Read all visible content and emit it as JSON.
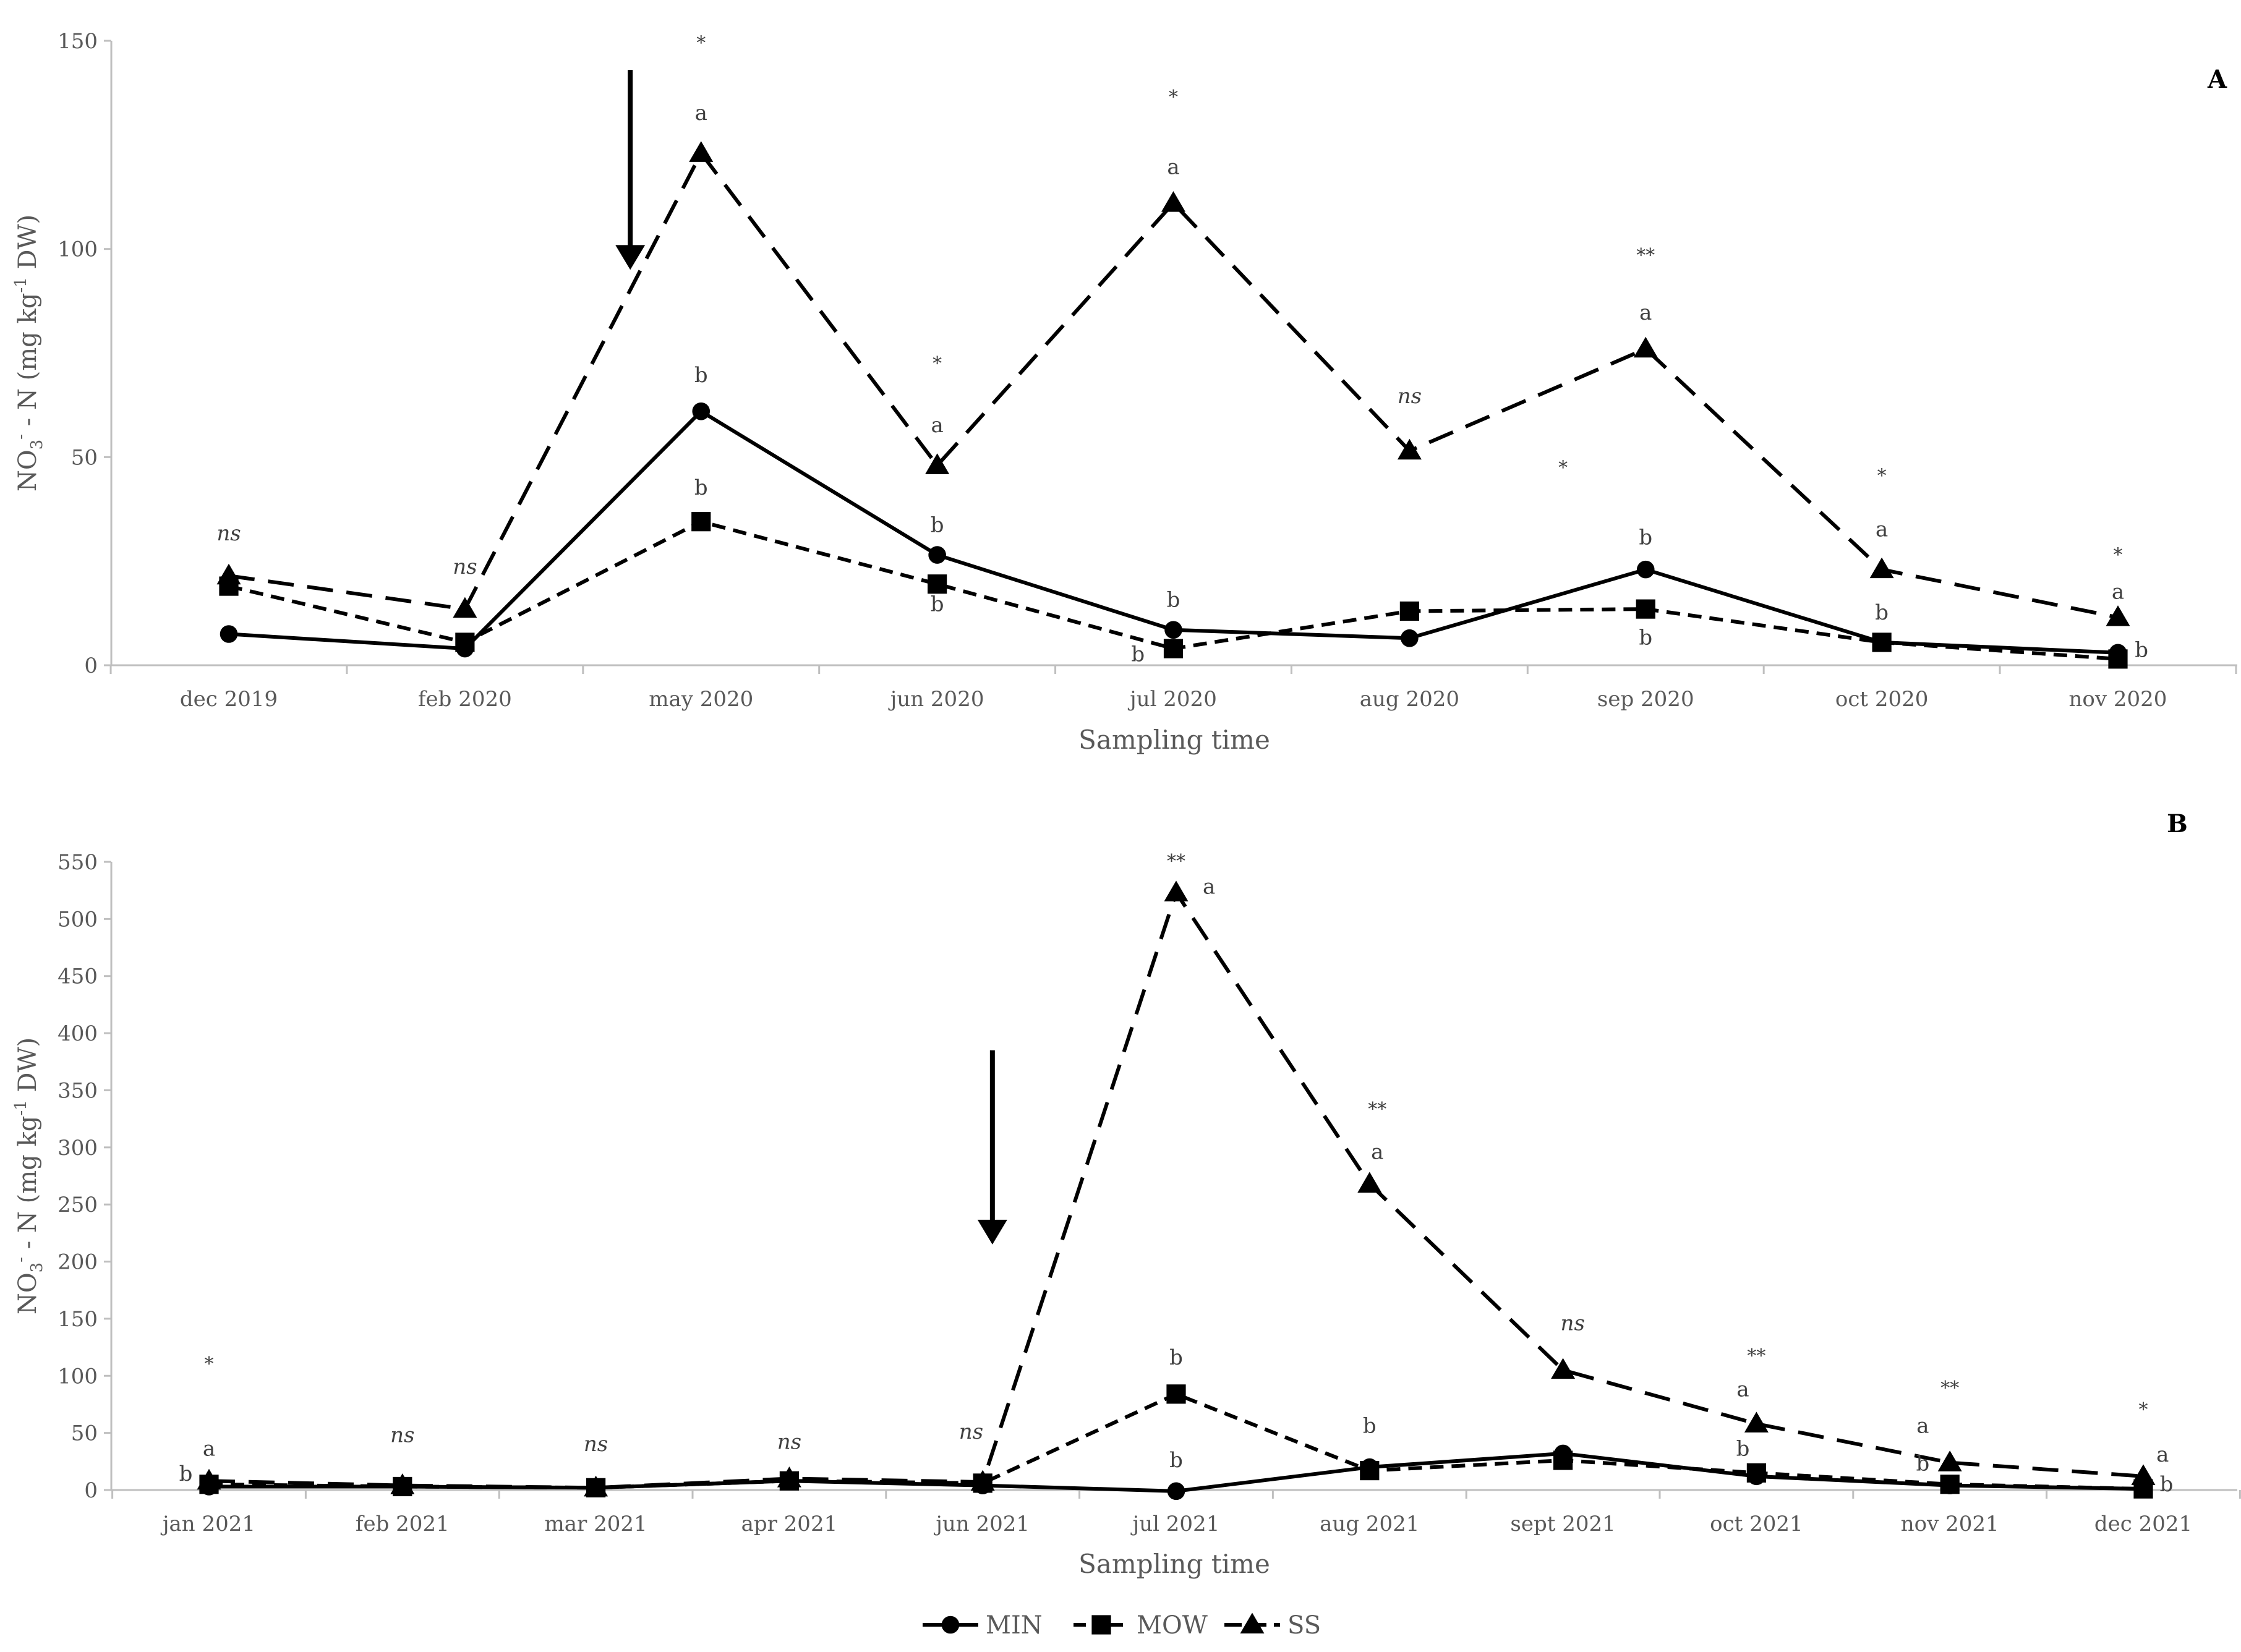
{
  "chart_data": [
    {
      "type": "line",
      "panel_label": "A",
      "xlabel": "Sampling time",
      "ylabel": "NO₃⁻ - N (mg kg⁻¹ DW)",
      "ylabel_parts": {
        "pre": "NO",
        "sub": "3",
        "sup1": "-",
        "mid": " - N (mg kg",
        "sup2": "-1",
        "post": " DW)"
      },
      "ylim": [
        0,
        150
      ],
      "yticks": [
        0,
        50,
        100,
        150
      ],
      "categories": [
        "dec 2019",
        "feb 2020",
        "may 2020",
        "jun 2020",
        "jul 2020",
        "aug 2020",
        "sep 2020",
        "oct 2020",
        "nov 2020"
      ],
      "series": [
        {
          "name": "MIN",
          "marker": "circle",
          "dash": "solid",
          "values": [
            7.5,
            4,
            61,
            26.5,
            8.5,
            6.5,
            23,
            5.5,
            3
          ]
        },
        {
          "name": "MOW",
          "marker": "square",
          "dash": "short",
          "values": [
            19,
            5.5,
            34.5,
            19.5,
            4,
            13,
            13.5,
            5.5,
            1.5
          ]
        },
        {
          "name": "SS",
          "marker": "triangle",
          "dash": "long",
          "values": [
            21.5,
            13.5,
            123,
            48,
            111,
            51.5,
            76,
            23,
            11.5
          ]
        }
      ],
      "annotations": [
        {
          "cat": 0,
          "value": 30,
          "text": "ns",
          "italic": true
        },
        {
          "cat": 1,
          "value": 22,
          "text": "ns",
          "italic": true
        },
        {
          "cat": 2,
          "value": 148,
          "text": "*"
        },
        {
          "cat": 2,
          "value": 131,
          "text": "a"
        },
        {
          "cat": 2,
          "value": 68,
          "text": "b"
        },
        {
          "cat": 2,
          "value": 41,
          "text": "b"
        },
        {
          "cat": 3,
          "value": 71,
          "text": "*"
        },
        {
          "cat": 3,
          "value": 56,
          "text": "a"
        },
        {
          "cat": 3,
          "value": 32,
          "text": "b"
        },
        {
          "cat": 3,
          "value": 13,
          "text": "b"
        },
        {
          "cat": 4,
          "value": 135,
          "text": "*"
        },
        {
          "cat": 4,
          "value": 118,
          "text": "a"
        },
        {
          "cat": 4,
          "value": 14,
          "text": "b"
        },
        {
          "cat": 3.85,
          "value": 1,
          "text": "b"
        },
        {
          "cat": 5,
          "value": 63,
          "text": "ns",
          "italic": true
        },
        {
          "cat": 6,
          "value": 97,
          "text": "**"
        },
        {
          "cat": 6,
          "value": 83,
          "text": "a"
        },
        {
          "cat": 5.65,
          "value": 46,
          "text": "*"
        },
        {
          "cat": 6,
          "value": 29,
          "text": "b"
        },
        {
          "cat": 6,
          "value": 5,
          "text": "b"
        },
        {
          "cat": 7,
          "value": 44,
          "text": "*"
        },
        {
          "cat": 7,
          "value": 31,
          "text": "a"
        },
        {
          "cat": 7,
          "value": 11,
          "text": "b"
        },
        {
          "cat": 8,
          "value": 25,
          "text": "*"
        },
        {
          "cat": 8,
          "value": 16,
          "text": "a"
        },
        {
          "cat": 8.1,
          "value": 2,
          "text": "b"
        }
      ],
      "arrow": {
        "cat": 1.7,
        "from": 143,
        "to": 95
      }
    },
    {
      "type": "line",
      "panel_label": "B",
      "xlabel": "Sampling time",
      "ylabel": "NO₃⁻ - N (mg kg⁻¹ DW)",
      "ylabel_parts": {
        "pre": "NO",
        "sub": "3",
        "sup1": "-",
        "mid": " - N (mg kg",
        "sup2": "-1",
        "post": " DW)"
      },
      "ylim": [
        0,
        550
      ],
      "yticks": [
        0,
        50,
        100,
        150,
        200,
        250,
        300,
        350,
        400,
        450,
        500,
        550
      ],
      "categories": [
        "jan 2021",
        "feb 2021",
        "mar 2021",
        "apr 2021",
        "jun 2021",
        "jul 2021",
        "aug 2021",
        "sept 2021",
        "oct 2021",
        "nov 2021",
        "dec 2021"
      ],
      "series": [
        {
          "name": "MIN",
          "marker": "circle",
          "dash": "solid",
          "values": [
            3,
            3,
            2,
            8,
            4,
            -1,
            20,
            32,
            12,
            4,
            1
          ]
        },
        {
          "name": "MOW",
          "marker": "square",
          "dash": "short",
          "values": [
            5,
            3,
            2,
            8,
            6,
            84,
            17,
            26,
            15,
            5,
            1
          ]
        },
        {
          "name": "SS",
          "marker": "triangle",
          "dash": "long",
          "values": [
            8,
            4,
            2,
            10,
            7,
            523,
            268,
            105,
            58,
            24,
            12
          ]
        }
      ],
      "annotations": [
        {
          "cat": 0,
          "value": 105,
          "text": "*"
        },
        {
          "cat": 0,
          "value": 30,
          "text": "a"
        },
        {
          "cat": -0.12,
          "value": 8,
          "text": "b"
        },
        {
          "cat": 1,
          "value": 42,
          "text": "ns",
          "italic": true
        },
        {
          "cat": 2,
          "value": 34,
          "text": "ns",
          "italic": true
        },
        {
          "cat": 3,
          "value": 36,
          "text": "ns",
          "italic": true
        },
        {
          "cat": 3.94,
          "value": 45,
          "text": "ns",
          "italic": true
        },
        {
          "cat": 5,
          "value": 545,
          "text": "**"
        },
        {
          "cat": 5.17,
          "value": 522,
          "text": "a"
        },
        {
          "cat": 5,
          "value": 110,
          "text": "b"
        },
        {
          "cat": 5,
          "value": 20,
          "text": "b"
        },
        {
          "cat": 6.04,
          "value": 328,
          "text": "**"
        },
        {
          "cat": 6.04,
          "value": 290,
          "text": "a"
        },
        {
          "cat": 6,
          "value": 50,
          "text": "b"
        },
        {
          "cat": 7.05,
          "value": 140,
          "text": "ns",
          "italic": true
        },
        {
          "cat": 8,
          "value": 112,
          "text": "**"
        },
        {
          "cat": 7.93,
          "value": 82,
          "text": "a"
        },
        {
          "cat": 7.93,
          "value": 30,
          "text": "b"
        },
        {
          "cat": 9,
          "value": 84,
          "text": "**"
        },
        {
          "cat": 8.86,
          "value": 50,
          "text": "a"
        },
        {
          "cat": 8.86,
          "value": 17,
          "text": "b"
        },
        {
          "cat": 10,
          "value": 65,
          "text": "*"
        },
        {
          "cat": 10.1,
          "value": 25,
          "text": "a"
        },
        {
          "cat": 10.12,
          "value": -1,
          "text": "b"
        }
      ],
      "arrow": {
        "cat": 4.05,
        "from": 385,
        "to": 215
      }
    }
  ],
  "legend": {
    "placement": "bottom-center",
    "items": [
      {
        "name": "MIN",
        "marker": "circle",
        "dash": "solid"
      },
      {
        "name": "MOW",
        "marker": "square",
        "dash": "short"
      },
      {
        "name": "SS",
        "marker": "triangle",
        "dash": "long"
      }
    ]
  },
  "colors": {
    "line": "#000000",
    "axis": "#bfbfbf",
    "text": "#595959",
    "annotation": "#404040"
  }
}
